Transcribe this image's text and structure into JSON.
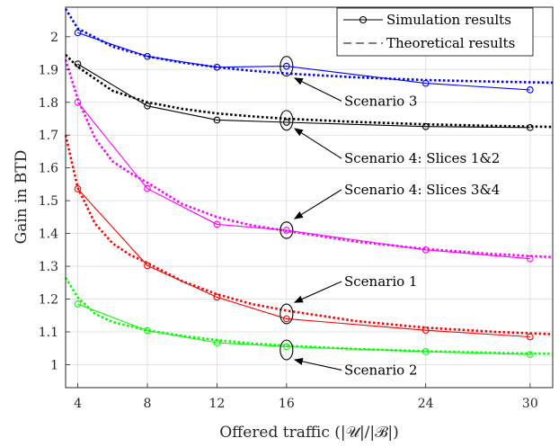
{
  "chart_data": {
    "type": "line",
    "xlabel": "Offered traffic (|𝒰|/|ℬ|)",
    "ylabel": "Gain in BTD",
    "xlim": [
      3.3,
      31.3
    ],
    "ylim": [
      0.93,
      2.09
    ],
    "xticks": [
      4,
      8,
      12,
      16,
      24,
      30
    ],
    "yticks": [
      1,
      1.1,
      1.2,
      1.3,
      1.4,
      1.5,
      1.6,
      1.7,
      1.8,
      1.9,
      2
    ],
    "ytick_labels": [
      "1",
      "1.1",
      "1.2",
      "1.3",
      "1.4",
      "1.5",
      "1.6",
      "1.7",
      "1.8",
      "1.9",
      "2"
    ],
    "grid": true,
    "legend_position": "top-right",
    "legend": [
      {
        "label": "Simulation results",
        "style": "solid-marker"
      },
      {
        "label": "Theoretical results",
        "style": "dashed"
      }
    ],
    "series": [
      {
        "color": "#0000ff",
        "x": [
          4,
          8,
          12,
          16,
          24,
          30
        ],
        "sim": [
          2.012,
          1.94,
          1.907,
          1.91,
          1.858,
          1.838
        ],
        "theory_x": [
          3.3,
          4,
          6,
          8,
          10,
          12,
          14,
          16,
          20,
          24,
          28,
          31.3
        ],
        "theory": [
          2.085,
          2.025,
          1.97,
          1.94,
          1.921,
          1.907,
          1.896,
          1.888,
          1.876,
          1.868,
          1.863,
          1.86
        ]
      },
      {
        "color": "#000000",
        "x": [
          4,
          8,
          12,
          16,
          24,
          30
        ],
        "sim": [
          1.917,
          1.789,
          1.746,
          1.739,
          1.726,
          1.723
        ],
        "theory_x": [
          3.3,
          4,
          6,
          8,
          10,
          12,
          14,
          16,
          20,
          24,
          28,
          31.3
        ],
        "theory": [
          1.945,
          1.908,
          1.835,
          1.8,
          1.78,
          1.766,
          1.757,
          1.75,
          1.74,
          1.733,
          1.728,
          1.725
        ]
      },
      {
        "color": "#ff00ff",
        "x": [
          4,
          8,
          12,
          16,
          24,
          30
        ],
        "sim": [
          1.8,
          1.537,
          1.428,
          1.41,
          1.35,
          1.323
        ],
        "theory_x": [
          3.3,
          4,
          5,
          6,
          7,
          8,
          10,
          12,
          14,
          16,
          20,
          24,
          28,
          31.3
        ],
        "theory": [
          1.93,
          1.81,
          1.69,
          1.62,
          1.585,
          1.555,
          1.49,
          1.45,
          1.425,
          1.408,
          1.375,
          1.353,
          1.337,
          1.328
        ]
      },
      {
        "color": "#ff0000",
        "x": [
          4,
          8,
          12,
          16,
          24,
          30
        ],
        "sim": [
          1.536,
          1.302,
          1.206,
          1.14,
          1.105,
          1.085
        ],
        "theory_x": [
          3.3,
          4,
          5,
          6,
          7,
          8,
          10,
          12,
          14,
          16,
          20,
          24,
          28,
          31.3
        ],
        "theory": [
          1.7,
          1.54,
          1.43,
          1.37,
          1.335,
          1.31,
          1.255,
          1.215,
          1.185,
          1.165,
          1.133,
          1.113,
          1.1,
          1.093
        ]
      },
      {
        "color": "#00ff00",
        "x": [
          4,
          8,
          12,
          16,
          24,
          30
        ],
        "sim": [
          1.185,
          1.104,
          1.067,
          1.055,
          1.04,
          1.031
        ],
        "theory_x": [
          3.3,
          4,
          5,
          6,
          8,
          10,
          12,
          14,
          16,
          20,
          24,
          28,
          31.3
        ],
        "theory": [
          1.265,
          1.205,
          1.155,
          1.13,
          1.105,
          1.088,
          1.075,
          1.065,
          1.058,
          1.048,
          1.041,
          1.036,
          1.033
        ]
      }
    ],
    "annotations": [
      {
        "text": "Scenario 3",
        "x_data": 16,
        "y_data": 1.91,
        "ellipse_h": 0.03,
        "arrow_to_y": 1.874,
        "text_y": 1.79
      },
      {
        "text": "Scenario 4:  Slices 1&2",
        "x_data": 16,
        "y_data": 1.745,
        "ellipse_h": 0.03,
        "arrow_to_y": 1.72,
        "text_y": 1.615
      },
      {
        "text": "Scenario 4:  Slices 3&4",
        "x_data": 16,
        "y_data": 1.41,
        "ellipse_h": 0.025,
        "arrow_to_y": 1.445,
        "text_y": 1.52
      },
      {
        "text": "Scenario 1",
        "x_data": 16,
        "y_data": 1.155,
        "ellipse_h": 0.03,
        "arrow_to_y": 1.19,
        "text_y": 1.24
      },
      {
        "text": "Scenario 2",
        "x_data": 16,
        "y_data": 1.045,
        "ellipse_h": 0.03,
        "arrow_to_y": 1.015,
        "text_y": 0.97
      }
    ]
  }
}
